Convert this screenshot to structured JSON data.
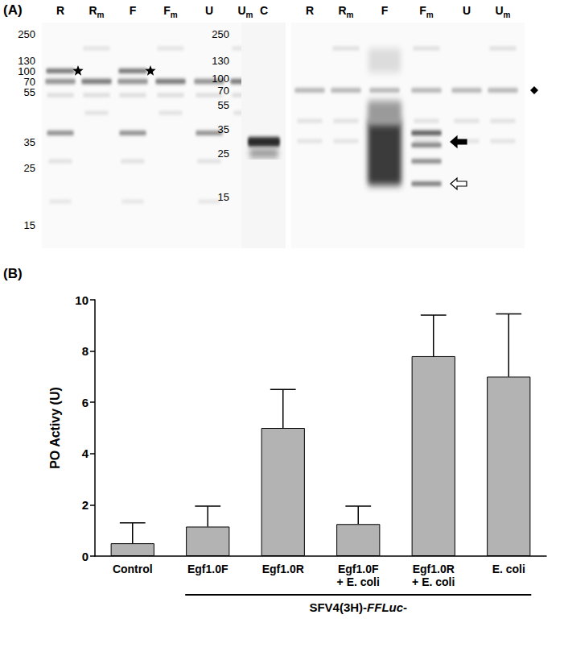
{
  "figure": {
    "panel_labels": [
      "(A)",
      "(B)"
    ],
    "blots": [
      {
        "markers": [
          250,
          130,
          100,
          70,
          55,
          35,
          25,
          15
        ],
        "lanes": [
          {
            "label": "R"
          },
          {
            "label": "R",
            "subscript": "m"
          },
          {
            "label": "F"
          },
          {
            "label": "F",
            "subscript": "m"
          },
          {
            "label": "U"
          },
          {
            "label": "U",
            "subscript": "m"
          }
        ]
      },
      {
        "markers": [
          250,
          130,
          100,
          70,
          55,
          35,
          25,
          15
        ],
        "control_lane": {
          "label": "C"
        },
        "lanes": [
          {
            "label": "R"
          },
          {
            "label": "R",
            "subscript": "m"
          },
          {
            "label": "F"
          },
          {
            "label": "F",
            "subscript": "m"
          },
          {
            "label": "U"
          },
          {
            "label": "U",
            "subscript": "m"
          }
        ]
      }
    ]
  },
  "chart_data": {
    "type": "bar",
    "y_label": "PO Activy (U)",
    "categories": [
      "Control",
      "Egf1.0F",
      "Egf1.0R",
      "Egf1.0F\n+ E. coli",
      "Egf1.0R\n+ E. coli",
      "E. coli"
    ],
    "values": [
      0.5,
      1.15,
      5.0,
      1.25,
      7.8,
      7.0
    ],
    "errors": [
      0.8,
      0.8,
      1.5,
      0.7,
      1.6,
      2.45
    ],
    "group_label": "SFV4(3H)-FFLuc-",
    "color": "#b3b3b3",
    "ylim": [
      0,
      10
    ],
    "yticks": [
      0,
      2,
      4,
      6,
      8,
      10
    ],
    "grid": false
  }
}
